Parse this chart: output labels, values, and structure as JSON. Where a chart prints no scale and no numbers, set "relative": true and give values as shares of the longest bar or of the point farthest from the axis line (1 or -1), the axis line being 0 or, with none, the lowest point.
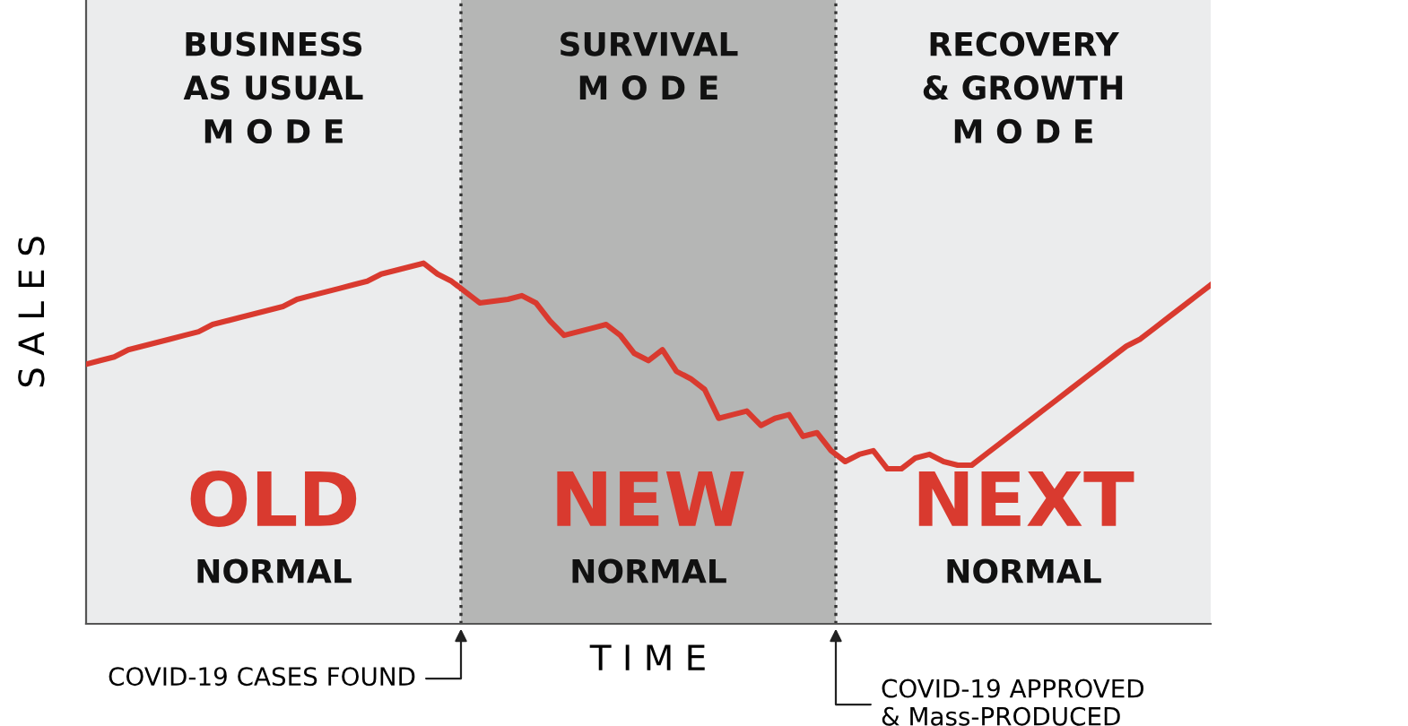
{
  "chart_data": {
    "type": "line",
    "relative": true,
    "xlabel": "T I M E",
    "ylabel": "S A L E S",
    "categories": [
      null,
      null,
      null,
      null,
      null,
      null,
      null,
      null,
      null,
      null,
      null,
      null,
      null,
      null,
      null,
      null,
      null,
      null,
      null,
      null,
      null,
      null,
      null,
      null,
      null,
      null,
      null,
      null,
      null,
      null,
      null,
      null,
      null,
      null,
      null,
      null,
      null,
      null,
      null,
      null,
      null,
      null,
      null,
      null,
      null,
      null,
      null,
      null,
      null,
      null,
      null,
      null,
      null,
      null,
      null,
      null,
      null,
      null,
      null,
      null,
      null,
      null,
      null,
      null,
      null,
      null,
      null,
      null,
      null,
      null,
      null,
      null,
      null,
      null,
      null,
      null,
      null,
      null,
      null,
      null,
      null
    ],
    "series": [
      {
        "color": "#d93a2f",
        "values": [
          0.72,
          0.73,
          0.74,
          0.76,
          0.77,
          0.78,
          0.79,
          0.8,
          0.81,
          0.83,
          0.84,
          0.85,
          0.86,
          0.87,
          0.88,
          0.9,
          0.91,
          0.92,
          0.93,
          0.94,
          0.95,
          0.97,
          0.98,
          0.99,
          1,
          0.97,
          0.95,
          0.92,
          0.89,
          0.895,
          0.9,
          0.91,
          0.89,
          0.84,
          0.8,
          0.81,
          0.82,
          0.83,
          0.8,
          0.75,
          0.73,
          0.76,
          0.7,
          0.68,
          0.65,
          0.57,
          0.58,
          0.59,
          0.55,
          0.57,
          0.58,
          0.52,
          0.53,
          0.48,
          0.45,
          0.47,
          0.48,
          0.43,
          0.43,
          0.46,
          0.47,
          0.45,
          0.44,
          0.44,
          0.47,
          0.5,
          0.53,
          0.56,
          0.59,
          0.62,
          0.65,
          0.68,
          0.71,
          0.74,
          0.77,
          0.79,
          0.82,
          0.85,
          0.88,
          0.91,
          0.94
        ]
      }
    ],
    "annotations": [
      "BUSINESS\nAS USUAL\nM O D E",
      "SURVIVAL\nM O D E",
      "RECOVERY\n& GROWTH\nM O D E",
      "OLD",
      "NEW",
      "NEXT",
      "NORMAL",
      "NORMAL",
      "NORMAL",
      "COVID-19 CASES FOUND",
      "COVID-19 APPROVED\n& Mass-PRODUCED"
    ],
    "marker": "none",
    "line_style": "solid"
  }
}
